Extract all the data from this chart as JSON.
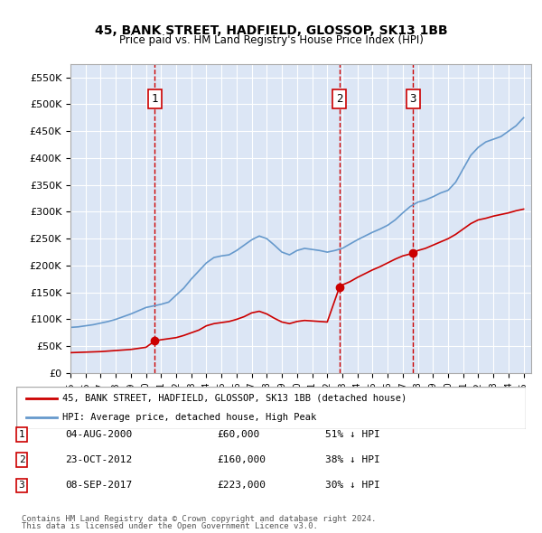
{
  "title1": "45, BANK STREET, HADFIELD, GLOSSOP, SK13 1BB",
  "title2": "Price paid vs. HM Land Registry's House Price Index (HPI)",
  "legend_line1": "45, BANK STREET, HADFIELD, GLOSSOP, SK13 1BB (detached house)",
  "legend_line2": "HPI: Average price, detached house, High Peak",
  "ylabel_color": "#333333",
  "background_color": "#dce6f5",
  "plot_bg": "#dce6f5",
  "hpi_color": "#6699cc",
  "price_color": "#cc0000",
  "vline_color": "#cc0000",
  "sale_dates": [
    2000.59,
    2012.81,
    2017.69
  ],
  "sale_prices": [
    60000,
    160000,
    223000
  ],
  "sale_labels": [
    "1",
    "2",
    "3"
  ],
  "sale_info": [
    [
      "1",
      "04-AUG-2000",
      "£60,000",
      "51% ↓ HPI"
    ],
    [
      "2",
      "23-OCT-2012",
      "£160,000",
      "38% ↓ HPI"
    ],
    [
      "3",
      "08-SEP-2017",
      "£223,000",
      "30% ↓ HPI"
    ]
  ],
  "footer1": "Contains HM Land Registry data © Crown copyright and database right 2024.",
  "footer2": "This data is licensed under the Open Government Licence v3.0.",
  "xmin": 1995.0,
  "xmax": 2025.5,
  "ymin": 0,
  "ymax": 575000,
  "yticks": [
    0,
    50000,
    100000,
    150000,
    200000,
    250000,
    300000,
    350000,
    400000,
    450000,
    500000,
    550000
  ]
}
